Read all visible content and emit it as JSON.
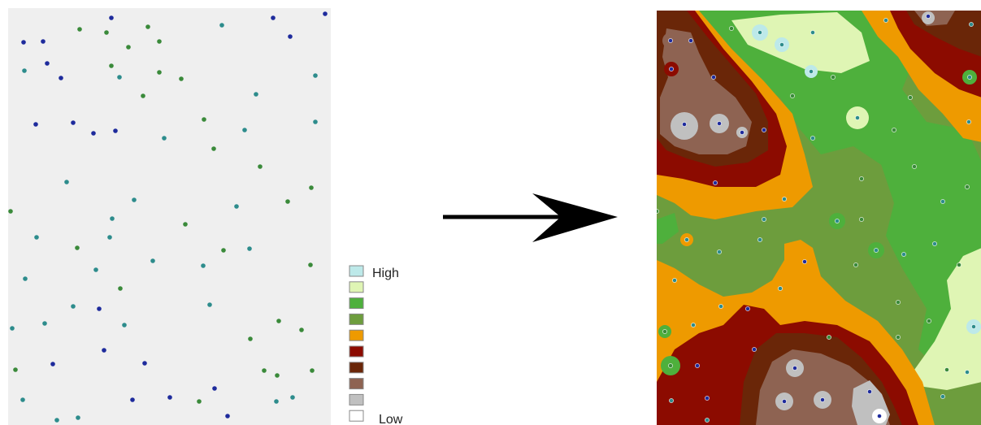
{
  "legend": {
    "high_label": "High",
    "low_label": "Low",
    "classes": [
      {
        "name": "class-1",
        "color": "#bde9e9"
      },
      {
        "name": "class-2",
        "color": "#dff5b4"
      },
      {
        "name": "class-3",
        "color": "#4eb03c"
      },
      {
        "name": "class-4",
        "color": "#6d9d3d"
      },
      {
        "name": "class-5",
        "color": "#ee9a00"
      },
      {
        "name": "class-6",
        "color": "#8c0b00"
      },
      {
        "name": "class-7",
        "color": "#6a2608"
      },
      {
        "name": "class-8",
        "color": "#8e6352"
      },
      {
        "name": "class-9",
        "color": "#c0c0c0"
      },
      {
        "name": "class-10",
        "color": "#ffffff"
      }
    ]
  },
  "colors": {
    "input_background": "#efefef",
    "point_dark": "#1e2b9c",
    "point_teal": "#2d8c8c",
    "point_green": "#3a8a3a",
    "arrow": "#000000"
  },
  "map_left": {
    "description_icon": "sample-points-map",
    "points_kind": "sample-point"
  },
  "map_right": {
    "description_icon": "interpolated-surface-map"
  }
}
